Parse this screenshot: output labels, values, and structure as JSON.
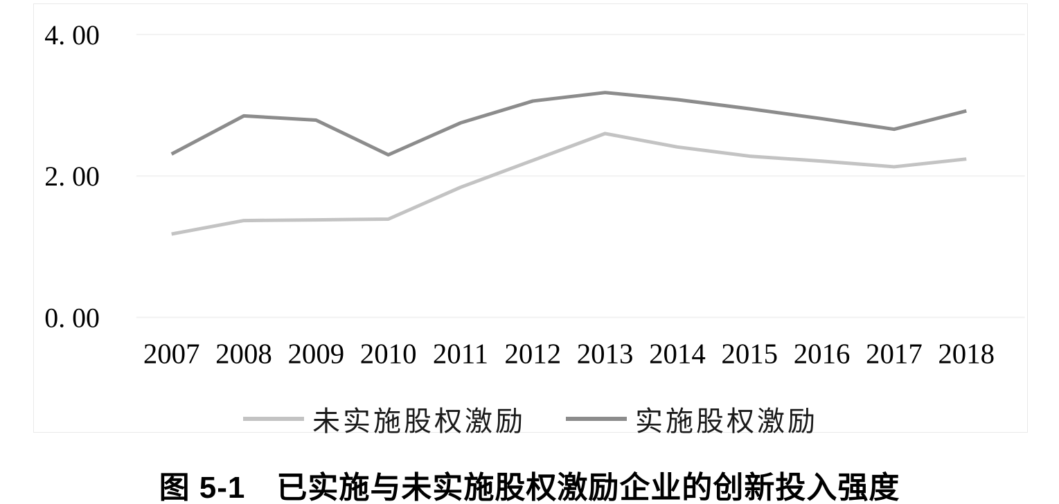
{
  "caption": "图 5-1　已实施与未实施股权激励企业的创新投入强度",
  "colors": {
    "series_not_implemented": "#c3c3c3",
    "series_implemented": "#8c8c8c",
    "gridline": "#f2f2f2",
    "frame_border": "#e9e9e9",
    "axis_text": "#000000"
  },
  "legend": {
    "items": [
      {
        "label": "未实施股权激励",
        "color": "#c3c3c3"
      },
      {
        "label": "实施股权激励",
        "color": "#8c8c8c"
      }
    ]
  },
  "chart_data": {
    "type": "line",
    "title": "图 5-1　已实施与未实施股权激励企业的创新投入强度",
    "xlabel": "",
    "ylabel": "",
    "categories": [
      "2007",
      "2008",
      "2009",
      "2010",
      "2011",
      "2012",
      "2013",
      "2014",
      "2015",
      "2016",
      "2017",
      "2018"
    ],
    "series": [
      {
        "name": "未实施股权激励",
        "color": "#c3c3c3",
        "values": [
          1.18,
          1.37,
          1.38,
          1.39,
          1.84,
          2.22,
          2.6,
          2.41,
          2.28,
          2.21,
          2.13,
          2.24
        ]
      },
      {
        "name": "实施股权激励",
        "color": "#8c8c8c",
        "values": [
          2.31,
          2.85,
          2.79,
          2.3,
          2.75,
          3.06,
          3.18,
          3.08,
          2.95,
          2.81,
          2.66,
          2.92
        ]
      }
    ],
    "ylim": [
      0,
      4
    ],
    "y_ticks": [
      {
        "value": 0,
        "label": "0. 00"
      },
      {
        "value": 2,
        "label": "2. 00"
      },
      {
        "value": 4,
        "label": "4. 00"
      }
    ],
    "grid": "horizontal",
    "legend_position": "bottom"
  }
}
